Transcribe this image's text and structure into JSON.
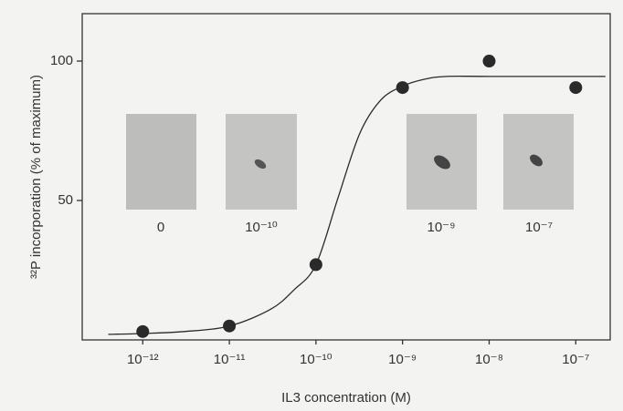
{
  "chart_data": {
    "type": "scatter",
    "x_label": "IL3 concentration (M)",
    "y_label": "³²P incorporation (% of maximum)",
    "x_scale": "log",
    "xlim": [
      2e-13,
      2.5e-07
    ],
    "xticks": [
      {
        "value": 1e-12,
        "label": "10⁻¹²"
      },
      {
        "value": 1e-11,
        "label": "10⁻¹¹"
      },
      {
        "value": 1e-10,
        "label": "10⁻¹⁰"
      },
      {
        "value": 1e-09,
        "label": "10⁻⁹"
      },
      {
        "value": 1e-08,
        "label": "10⁻⁸"
      },
      {
        "value": 1e-07,
        "label": "10⁻⁷"
      }
    ],
    "ylim": [
      0,
      117
    ],
    "yticks": [
      50,
      100
    ],
    "series": [
      {
        "color": "#2a2a2a",
        "marker": "circle",
        "x": [
          1e-12,
          1e-11,
          1e-10,
          1e-09,
          1e-08,
          1e-07
        ],
        "values": [
          3,
          5,
          27,
          90.5,
          100,
          90.5
        ]
      },
      {
        "color": "#2a2a2a",
        "marker": "line",
        "x": [
          4e-13,
          1e-12,
          3e-12,
          1e-11,
          3e-11,
          5.6e-11,
          1e-10,
          1.8e-10,
          3.2e-10,
          5.6e-10,
          1e-09,
          1.8e-09,
          3.2e-09,
          1e-08,
          1e-07,
          2.2e-07
        ],
        "values": [
          2,
          2.3,
          3,
          5,
          11,
          18,
          27,
          51,
          74,
          86,
          91,
          93.5,
          94.5,
          94.5,
          94.5,
          94.5
        ]
      }
    ],
    "inset_labels": [
      "0",
      "10⁻¹⁰",
      "10⁻⁹",
      "10⁻⁷"
    ]
  }
}
